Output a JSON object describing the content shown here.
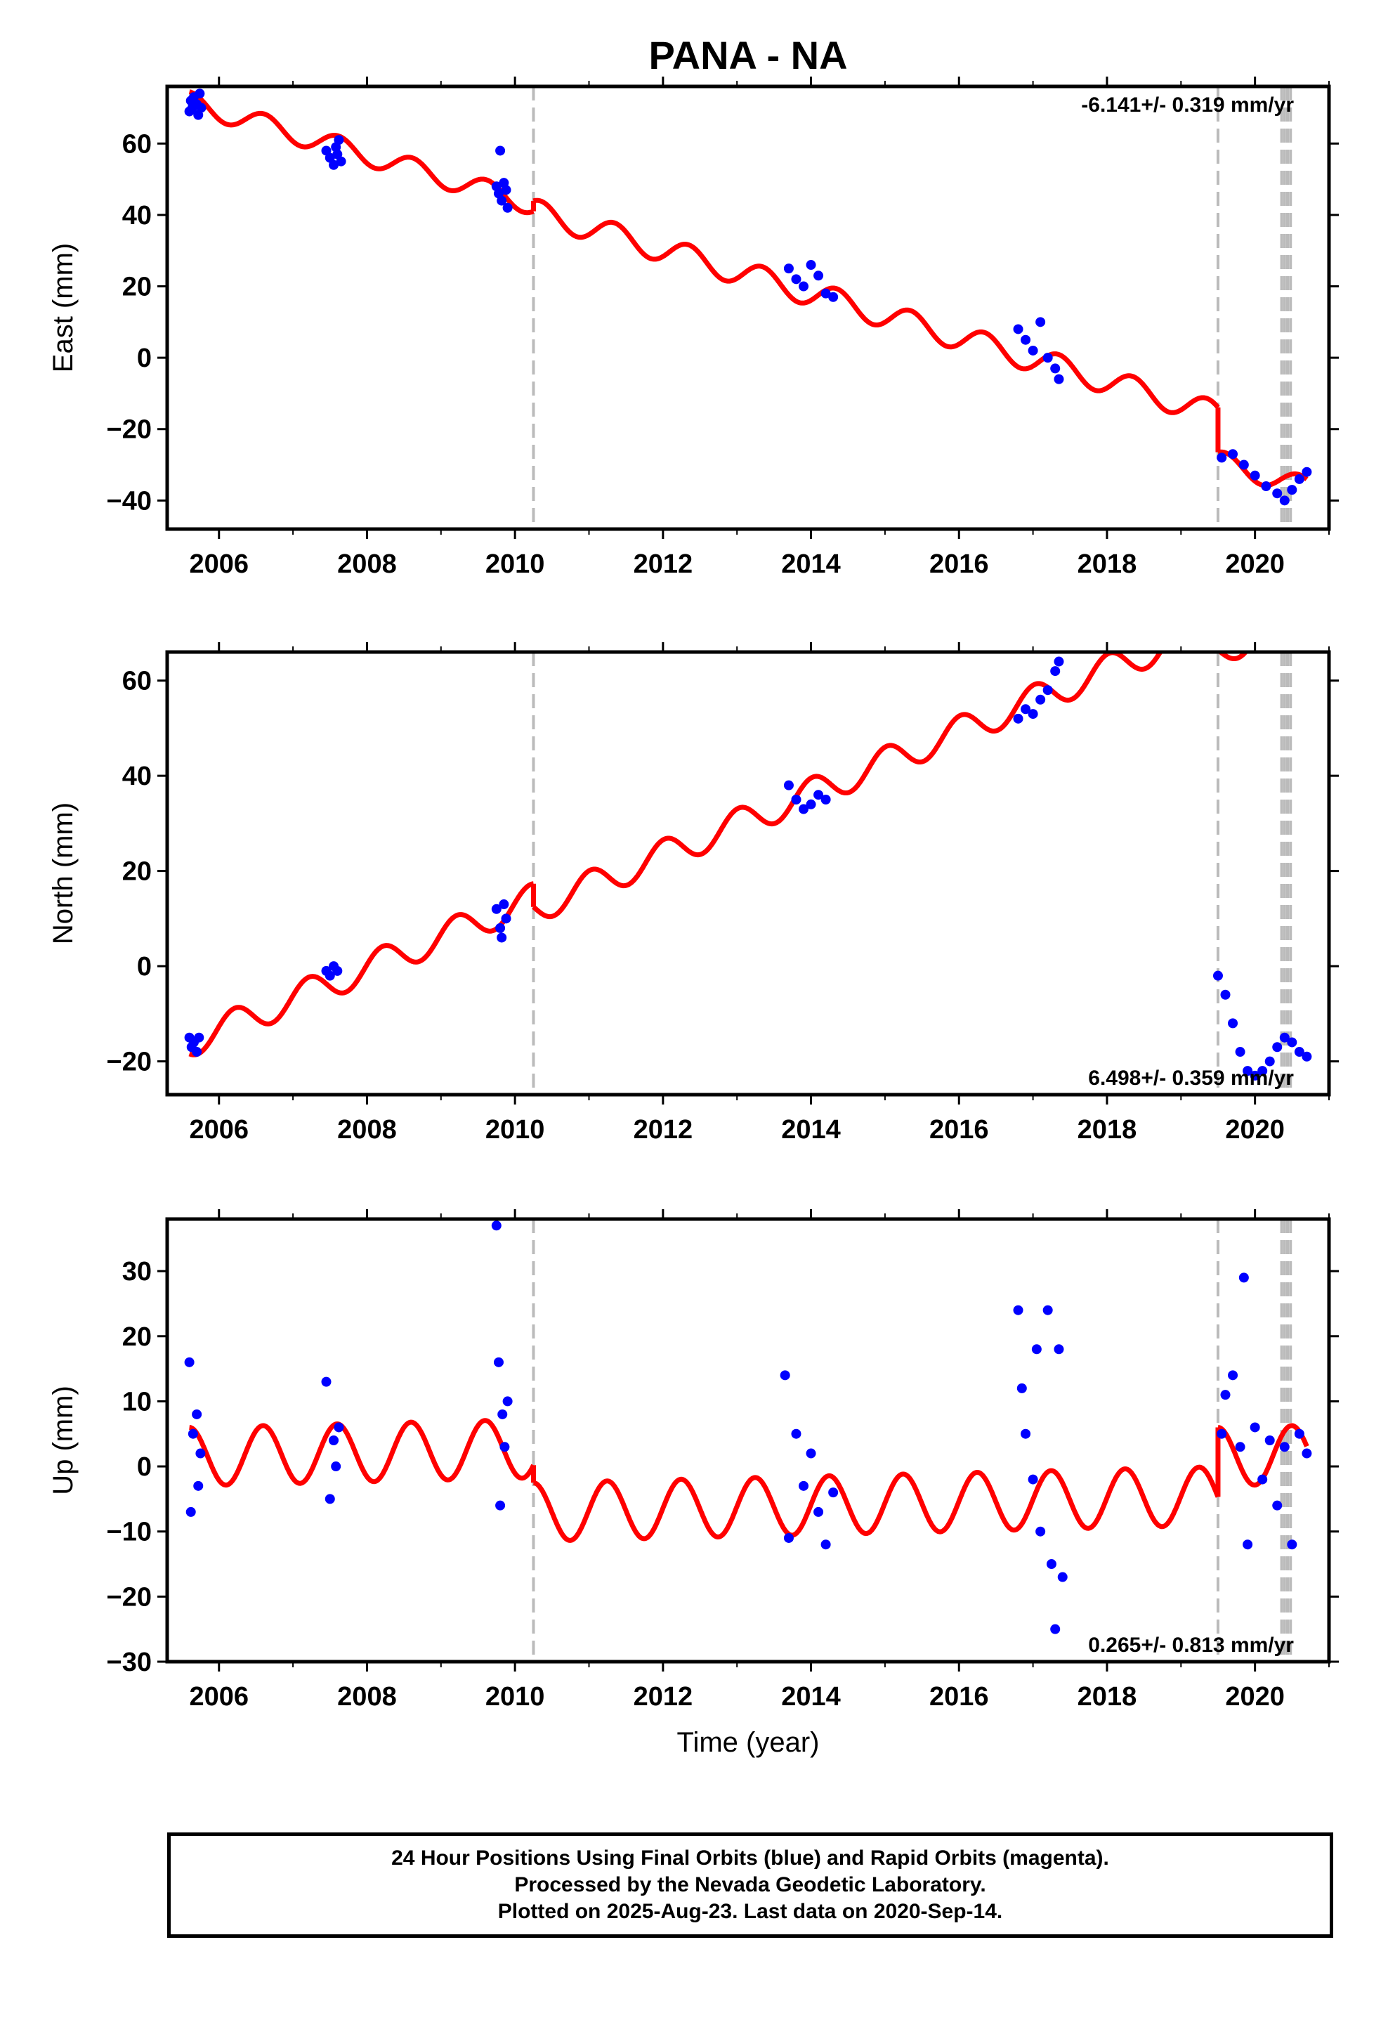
{
  "title": "PANA - NA",
  "colors": {
    "data": "#0000ff",
    "model": "#ff0000",
    "event_line": "#bbbbbb",
    "frame": "#000000"
  },
  "x_ticks": [
    2006,
    2008,
    2010,
    2012,
    2014,
    2016,
    2018,
    2020
  ],
  "xlabel": "Time (year)",
  "footer": {
    "line1": "24 Hour Positions Using Final Orbits (blue) and Rapid Orbits (magenta).",
    "line2": "Processed by the Nevada Geodetic Laboratory.",
    "line3": "Plotted on 2025-Aug-23. Last data on 2020-Sep-14."
  },
  "chart_data": [
    {
      "type": "scatter",
      "ylabel": "East (mm)",
      "xlim": [
        2005.3,
        2021.0
      ],
      "ylim": [
        -48,
        76
      ],
      "y_ticks": [
        -40,
        -20,
        0,
        20,
        40,
        60
      ],
      "rate_text": "-6.141+/- 0.319 mm/yr",
      "rate_position": "top-right",
      "event_lines": [
        2010.25,
        2019.5,
        2020.36,
        2020.4,
        2020.44,
        2020.48
      ],
      "series": [
        {
          "points": [
            [
              2005.6,
              69
            ],
            [
              2005.62,
              72
            ],
            [
              2005.64,
              70
            ],
            [
              2005.66,
              73
            ],
            [
              2005.7,
              71
            ],
            [
              2005.72,
              68
            ],
            [
              2005.74,
              74
            ],
            [
              2005.76,
              70
            ],
            [
              2007.45,
              58
            ],
            [
              2007.5,
              56
            ],
            [
              2007.55,
              54
            ],
            [
              2007.58,
              59
            ],
            [
              2007.6,
              57
            ],
            [
              2007.62,
              61
            ],
            [
              2007.65,
              55
            ],
            [
              2009.75,
              48
            ],
            [
              2009.78,
              46
            ],
            [
              2009.8,
              58
            ],
            [
              2009.82,
              44
            ],
            [
              2009.85,
              49
            ],
            [
              2009.88,
              47
            ],
            [
              2009.9,
              42
            ],
            [
              2013.7,
              25
            ],
            [
              2013.8,
              22
            ],
            [
              2013.9,
              20
            ],
            [
              2014.0,
              26
            ],
            [
              2014.1,
              23
            ],
            [
              2014.2,
              18
            ],
            [
              2014.3,
              17
            ],
            [
              2016.8,
              8
            ],
            [
              2016.9,
              5
            ],
            [
              2017.0,
              2
            ],
            [
              2017.1,
              10
            ],
            [
              2017.2,
              0
            ],
            [
              2017.3,
              -3
            ],
            [
              2017.35,
              -6
            ],
            [
              2019.55,
              -28
            ],
            [
              2019.7,
              -27
            ],
            [
              2019.85,
              -30
            ],
            [
              2020.0,
              -33
            ],
            [
              2020.15,
              -36
            ],
            [
              2020.3,
              -38
            ],
            [
              2020.4,
              -40
            ],
            [
              2020.5,
              -37
            ],
            [
              2020.6,
              -34
            ],
            [
              2020.7,
              -32
            ]
          ]
        },
        {
          "model_segments": [
            {
              "x_start": 2005.6,
              "x_end": 2010.25,
              "intercept": 71.5,
              "slope": -6.141,
              "amplitude": 3.0,
              "phase": 1.5
            },
            {
              "x_start": 2010.25,
              "x_end": 2019.5,
              "intercept": 41.0,
              "slope": -6.141,
              "amplitude": 3.5,
              "phase": 1.0
            },
            {
              "x_start": 2019.5,
              "x_end": 2020.7,
              "intercept": -29.0,
              "slope": -6.141,
              "amplitude": 3.0,
              "phase": 1.0
            }
          ]
        }
      ]
    },
    {
      "type": "scatter",
      "ylabel": "North (mm)",
      "xlim": [
        2005.3,
        2021.0
      ],
      "ylim": [
        -27,
        66
      ],
      "y_ticks": [
        -20,
        0,
        20,
        40,
        60
      ],
      "rate_text": "6.498+/- 0.359 mm/yr",
      "rate_position": "bottom-right",
      "event_lines": [
        2010.25,
        2019.5,
        2020.36,
        2020.4,
        2020.44,
        2020.48
      ],
      "series": [
        {
          "points": [
            [
              2005.6,
              -15
            ],
            [
              2005.63,
              -17
            ],
            [
              2005.66,
              -16
            ],
            [
              2005.7,
              -18
            ],
            [
              2005.73,
              -15
            ],
            [
              2007.45,
              -1
            ],
            [
              2007.5,
              -2
            ],
            [
              2007.55,
              0
            ],
            [
              2007.6,
              -1
            ],
            [
              2009.75,
              12
            ],
            [
              2009.8,
              8
            ],
            [
              2009.82,
              6
            ],
            [
              2009.85,
              13
            ],
            [
              2009.88,
              10
            ],
            [
              2013.7,
              38
            ],
            [
              2013.8,
              35
            ],
            [
              2013.9,
              33
            ],
            [
              2014.0,
              34
            ],
            [
              2014.1,
              36
            ],
            [
              2014.2,
              35
            ],
            [
              2016.8,
              52
            ],
            [
              2016.9,
              54
            ],
            [
              2017.0,
              53
            ],
            [
              2017.1,
              56
            ],
            [
              2017.2,
              58
            ],
            [
              2017.3,
              62
            ],
            [
              2017.35,
              64
            ],
            [
              2019.5,
              -2
            ],
            [
              2019.6,
              -6
            ],
            [
              2019.7,
              -12
            ],
            [
              2019.8,
              -18
            ],
            [
              2019.9,
              -22
            ],
            [
              2020.0,
              -23
            ],
            [
              2020.1,
              -22
            ],
            [
              2020.2,
              -20
            ],
            [
              2020.3,
              -17
            ],
            [
              2020.4,
              -15
            ],
            [
              2020.5,
              -16
            ],
            [
              2020.6,
              -18
            ],
            [
              2020.7,
              -19
            ]
          ]
        },
        {
          "model_segments": [
            {
              "x_start": 2005.6,
              "x_end": 2010.25,
              "intercept": -16.0,
              "slope": 6.498,
              "amplitude": 3.2,
              "phase": 4.0
            },
            {
              "x_start": 2010.25,
              "x_end": 2019.5,
              "intercept": 12.0,
              "slope": 6.498,
              "amplitude": 3.2,
              "phase": 3.0
            },
            {
              "x_start": 2019.5,
              "x_end": 2020.7,
              "intercept": 66.0,
              "slope": 6.498,
              "amplitude": 3.0,
              "phase": 3.0
            }
          ]
        }
      ]
    },
    {
      "type": "scatter",
      "ylabel": "Up (mm)",
      "xlim": [
        2005.3,
        2021.0
      ],
      "ylim": [
        -30,
        38
      ],
      "y_ticks": [
        -30,
        -20,
        -10,
        0,
        10,
        20,
        30
      ],
      "rate_text": "0.265+/- 0.813 mm/yr",
      "rate_position": "bottom-right",
      "event_lines": [
        2010.25,
        2019.5,
        2020.36,
        2020.4,
        2020.44,
        2020.48
      ],
      "series": [
        {
          "points": [
            [
              2005.6,
              16
            ],
            [
              2005.62,
              -7
            ],
            [
              2005.65,
              5
            ],
            [
              2005.7,
              8
            ],
            [
              2005.72,
              -3
            ],
            [
              2005.75,
              2
            ],
            [
              2007.45,
              13
            ],
            [
              2007.5,
              -5
            ],
            [
              2007.55,
              4
            ],
            [
              2007.58,
              0
            ],
            [
              2007.62,
              6
            ],
            [
              2009.75,
              37
            ],
            [
              2009.78,
              16
            ],
            [
              2009.8,
              -6
            ],
            [
              2009.83,
              8
            ],
            [
              2009.86,
              3
            ],
            [
              2009.9,
              10
            ],
            [
              2013.65,
              14
            ],
            [
              2013.7,
              -11
            ],
            [
              2013.8,
              5
            ],
            [
              2013.9,
              -3
            ],
            [
              2014.0,
              2
            ],
            [
              2014.1,
              -7
            ],
            [
              2014.2,
              -12
            ],
            [
              2014.3,
              -4
            ],
            [
              2016.8,
              24
            ],
            [
              2016.85,
              12
            ],
            [
              2016.9,
              5
            ],
            [
              2017.0,
              -2
            ],
            [
              2017.05,
              18
            ],
            [
              2017.1,
              -10
            ],
            [
              2017.2,
              24
            ],
            [
              2017.25,
              -15
            ],
            [
              2017.3,
              -25
            ],
            [
              2017.35,
              18
            ],
            [
              2017.4,
              -17
            ],
            [
              2019.55,
              5
            ],
            [
              2019.6,
              11
            ],
            [
              2019.7,
              14
            ],
            [
              2019.8,
              3
            ],
            [
              2019.85,
              29
            ],
            [
              2019.9,
              -12
            ],
            [
              2020.0,
              6
            ],
            [
              2020.1,
              -2
            ],
            [
              2020.2,
              4
            ],
            [
              2020.3,
              -6
            ],
            [
              2020.4,
              3
            ],
            [
              2020.5,
              -12
            ],
            [
              2020.6,
              5
            ],
            [
              2020.7,
              2
            ]
          ]
        },
        {
          "model_segments": [
            {
              "x_start": 2005.6,
              "x_end": 2010.25,
              "intercept": 1.5,
              "slope": 0.265,
              "amplitude": 4.5,
              "phase": 1.6
            },
            {
              "x_start": 2010.25,
              "x_end": 2019.5,
              "intercept": -7.0,
              "slope": 0.265,
              "amplitude": 4.5,
              "phase": 1.6
            },
            {
              "x_start": 2019.5,
              "x_end": 2020.7,
              "intercept": 1.5,
              "slope": 0.265,
              "amplitude": 4.5,
              "phase": 1.6
            }
          ]
        }
      ]
    }
  ]
}
